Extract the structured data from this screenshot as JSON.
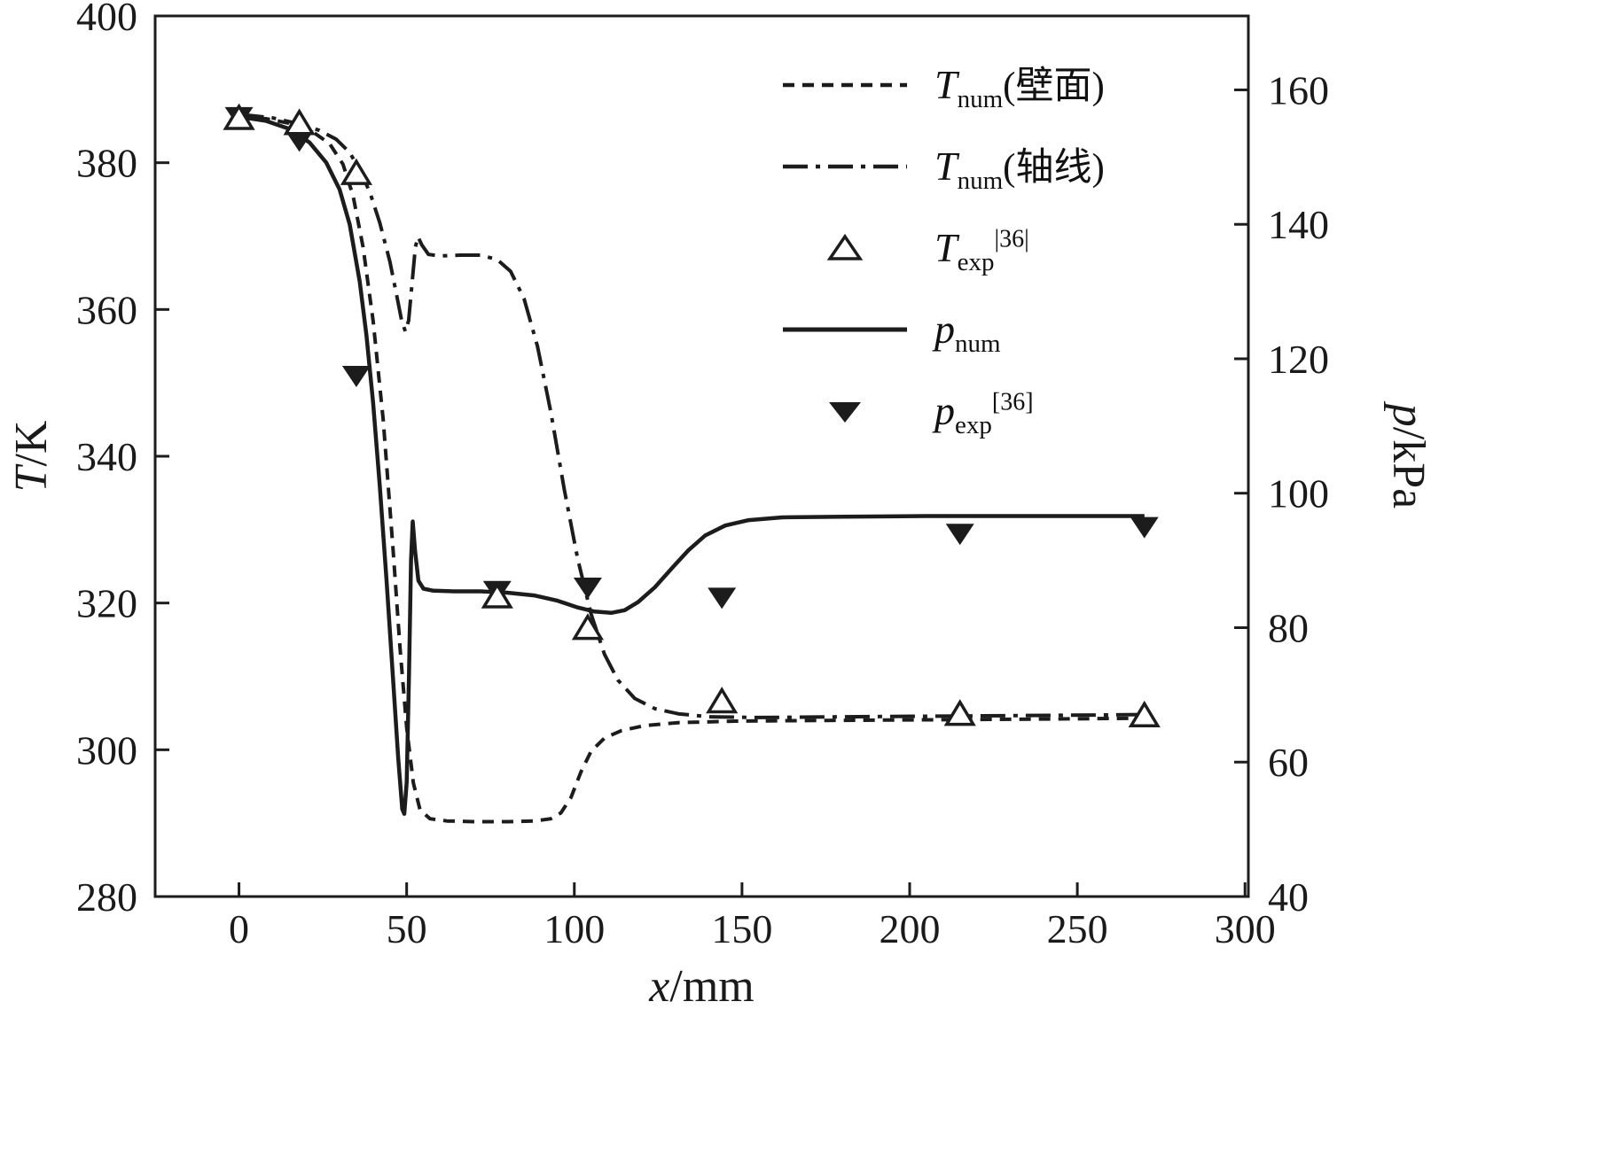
{
  "figure": {
    "xlabel": "x/mm",
    "ylabel_left": "T/K",
    "ylabel_right": "p/kPa"
  },
  "legend": {
    "items": [
      {
        "main": "T",
        "sub": "num",
        "suffix": "(壁面)",
        "sup": ""
      },
      {
        "main": "T",
        "sub": "num",
        "suffix": "(轴线)",
        "sup": ""
      },
      {
        "main": "T",
        "sub": "exp",
        "suffix": "",
        "sup": "|36|"
      },
      {
        "main": "p",
        "sub": "num",
        "suffix": "",
        "sup": ""
      },
      {
        "main": "p",
        "sub": "exp",
        "suffix": "",
        "sup": "[36]"
      }
    ]
  },
  "chart_data": {
    "type": "line",
    "title": "",
    "xlabel": "x/mm",
    "ylabel_left": "T/K",
    "ylabel_right": "p/kPa",
    "xlim": [
      -25,
      301
    ],
    "ylim_left": [
      280,
      400
    ],
    "ylim_right": [
      40,
      171
    ],
    "x_ticks": [
      0,
      50,
      100,
      150,
      200,
      250,
      300
    ],
    "y_ticks_left": [
      280,
      300,
      320,
      340,
      360,
      380,
      400
    ],
    "y_ticks_right": [
      40,
      60,
      80,
      100,
      120,
      140,
      160
    ],
    "grid": false,
    "legend_position": "upper-right-inside",
    "line_color": "#1c1c1c",
    "series": [
      {
        "name": "T_num_wall",
        "label": "T_num(壁面)",
        "axis": "left",
        "line": "dashed",
        "marker": null,
        "points": [
          [
            0,
            386.3
          ],
          [
            8,
            386.0
          ],
          [
            16,
            385.3
          ],
          [
            22,
            384.2
          ],
          [
            27,
            382.6
          ],
          [
            31,
            379.8
          ],
          [
            34,
            375.5
          ],
          [
            37,
            368.5
          ],
          [
            40,
            358.5
          ],
          [
            43,
            345.0
          ],
          [
            46,
            327.0
          ],
          [
            48,
            314.0
          ],
          [
            50,
            303.0
          ],
          [
            52,
            295.5
          ],
          [
            54,
            291.8
          ],
          [
            57,
            290.6
          ],
          [
            62,
            290.3
          ],
          [
            70,
            290.2
          ],
          [
            80,
            290.2
          ],
          [
            88,
            290.3
          ],
          [
            93,
            290.6
          ],
          [
            96,
            291.4
          ],
          [
            99,
            293.5
          ],
          [
            102,
            297.0
          ],
          [
            105,
            299.8
          ],
          [
            109,
            301.6
          ],
          [
            114,
            302.6
          ],
          [
            121,
            303.3
          ],
          [
            131,
            303.7
          ],
          [
            148,
            303.9
          ],
          [
            175,
            304.0
          ],
          [
            210,
            304.1
          ],
          [
            245,
            304.2
          ],
          [
            270,
            304.3
          ]
        ]
      },
      {
        "name": "T_num_axis",
        "label": "T_num(轴线)",
        "axis": "left",
        "line": "dashdot",
        "marker": null,
        "points": [
          [
            0,
            386.6
          ],
          [
            10,
            386.1
          ],
          [
            18,
            385.3
          ],
          [
            24,
            384.4
          ],
          [
            29,
            383.2
          ],
          [
            33,
            381.4
          ],
          [
            36,
            379.0
          ],
          [
            39,
            376.0
          ],
          [
            42,
            371.8
          ],
          [
            45,
            366.5
          ],
          [
            47,
            362.0
          ],
          [
            48.5,
            358.5
          ],
          [
            49.6,
            357.0
          ],
          [
            50.6,
            358.5
          ],
          [
            51.6,
            363.5
          ],
          [
            52.6,
            368.5
          ],
          [
            53.4,
            369.9
          ],
          [
            54.5,
            368.8
          ],
          [
            56.5,
            367.5
          ],
          [
            60,
            367.3
          ],
          [
            66,
            367.4
          ],
          [
            72,
            367.4
          ],
          [
            77,
            366.8
          ],
          [
            81,
            365.2
          ],
          [
            85,
            361.5
          ],
          [
            89,
            355.0
          ],
          [
            93,
            346.0
          ],
          [
            97,
            335.5
          ],
          [
            101,
            326.0
          ],
          [
            105,
            318.5
          ],
          [
            109,
            313.0
          ],
          [
            113,
            309.5
          ],
          [
            118,
            307.0
          ],
          [
            124,
            305.6
          ],
          [
            131,
            304.9
          ],
          [
            140,
            304.5
          ],
          [
            155,
            304.4
          ],
          [
            180,
            304.5
          ],
          [
            215,
            304.6
          ],
          [
            245,
            304.7
          ],
          [
            270,
            304.8
          ]
        ]
      },
      {
        "name": "T_exp",
        "label": "T_exp |36|",
        "axis": "left",
        "line": "none",
        "marker": "triangle-up-open",
        "points": [
          [
            0,
            386.0
          ],
          [
            18,
            385.3
          ],
          [
            35,
            378.5
          ],
          [
            77,
            320.8
          ],
          [
            104,
            316.5
          ],
          [
            144,
            306.5
          ],
          [
            215,
            304.8
          ],
          [
            270,
            304.6
          ]
        ]
      },
      {
        "name": "p_num",
        "label": "p_num",
        "axis": "right",
        "line": "solid",
        "marker": null,
        "points": [
          [
            0,
            156.0
          ],
          [
            8,
            155.4
          ],
          [
            15,
            154.2
          ],
          [
            21,
            152.2
          ],
          [
            26,
            149.2
          ],
          [
            30,
            145.2
          ],
          [
            33,
            140.0
          ],
          [
            36,
            131.5
          ],
          [
            38,
            123.5
          ],
          [
            40,
            113.5
          ],
          [
            42,
            101.0
          ],
          [
            44,
            87.0
          ],
          [
            46,
            72.0
          ],
          [
            47.5,
            60.5
          ],
          [
            48.7,
            53.0
          ],
          [
            49.3,
            52.3
          ],
          [
            50,
            57.0
          ],
          [
            50.7,
            73.0
          ],
          [
            51.3,
            90.0
          ],
          [
            51.8,
            95.8
          ],
          [
            52.5,
            91.5
          ],
          [
            53.5,
            87.0
          ],
          [
            55,
            85.8
          ],
          [
            58,
            85.5
          ],
          [
            64,
            85.4
          ],
          [
            72,
            85.4
          ],
          [
            80,
            85.2
          ],
          [
            88,
            84.8
          ],
          [
            95,
            84.0
          ],
          [
            101,
            83.0
          ],
          [
            106,
            82.4
          ],
          [
            111,
            82.2
          ],
          [
            115,
            82.6
          ],
          [
            119,
            83.8
          ],
          [
            124,
            86.0
          ],
          [
            129,
            88.8
          ],
          [
            134,
            91.5
          ],
          [
            139,
            93.7
          ],
          [
            145,
            95.2
          ],
          [
            152,
            96.0
          ],
          [
            162,
            96.4
          ],
          [
            180,
            96.5
          ],
          [
            205,
            96.6
          ],
          [
            240,
            96.6
          ],
          [
            270,
            96.6
          ]
        ]
      },
      {
        "name": "p_exp",
        "label": "p_exp [36]",
        "axis": "right",
        "line": "none",
        "marker": "triangle-down-filled",
        "points": [
          [
            0,
            156.0
          ],
          [
            18,
            152.5
          ],
          [
            35,
            117.5
          ],
          [
            77,
            85.5
          ],
          [
            104,
            86.0
          ],
          [
            144,
            84.5
          ],
          [
            215,
            94.0
          ],
          [
            270,
            95.0
          ]
        ]
      }
    ]
  }
}
